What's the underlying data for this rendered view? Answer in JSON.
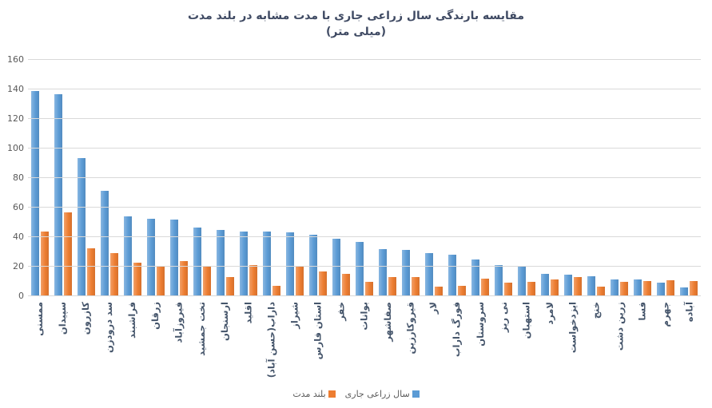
{
  "chart_data": {
    "type": "bar",
    "title": "مقایسه بارندگی سال زراعی جاری با مدت مشابه در بلند مدت",
    "subtitle": "(میلی متر)",
    "categories": [
      "ممسنی",
      "سپیدان",
      "کازرون",
      "سد درودزن",
      "فراشبند",
      "زرقان",
      "فیروزآباد",
      "تخت جمشید",
      "ارسنجان",
      "اقلید",
      "داراب(حسن آباد)",
      "شیراز",
      "استان فارس",
      "خفر",
      "بوانات",
      "صفاشهر",
      "قیروکارزین",
      "لار",
      "فورگ داراب",
      "سروستان",
      "نی ریز",
      "استهبان",
      "لامرد",
      "ایزدخواست",
      "خنج",
      "زرین دشت",
      "فسا",
      "جهرم",
      "آباده"
    ],
    "series": [
      {
        "name": "سال زراعی جاری",
        "color": "#5B9BD5",
        "values": [
          139,
          137,
          93.5,
          71.5,
          54,
          52.5,
          52,
          46.5,
          45,
          44,
          44,
          43.5,
          41.5,
          39,
          37,
          32,
          31.5,
          29,
          28,
          25,
          21,
          20.5,
          15,
          14.5,
          13.5,
          11.5,
          11.5,
          9,
          6
        ]
      },
      {
        "name": "بلند مدت",
        "color": "#ED7D31",
        "values": [
          44,
          56.5,
          32.5,
          29,
          22.5,
          20.5,
          24,
          20,
          13,
          21,
          7,
          20,
          16.5,
          15,
          10,
          13,
          13,
          6.5,
          7,
          12,
          9,
          10,
          11.5,
          13,
          6.5,
          9.5,
          10.5,
          11,
          10.5
        ]
      }
    ],
    "ylim": [
      0,
      160
    ],
    "y_ticks": [
      0,
      20,
      40,
      60,
      80,
      100,
      120,
      140,
      160
    ],
    "grid": true,
    "legend_position": "bottom",
    "title_color": "#3f4a63",
    "category_label_color": "#44546A",
    "tick_label_color": "#595959",
    "gridline_color": "#D9D9D9"
  }
}
